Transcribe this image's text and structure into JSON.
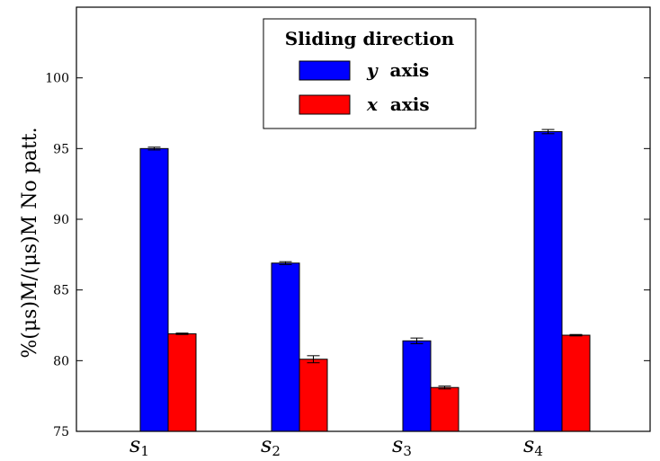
{
  "chart_data": {
    "type": "bar",
    "categories": [
      "s1",
      "s2",
      "s3",
      "s4"
    ],
    "category_labels": [
      {
        "main": "s",
        "sub": "1"
      },
      {
        "main": "s",
        "sub": "2"
      },
      {
        "main": "s",
        "sub": "3"
      },
      {
        "main": "s",
        "sub": "4"
      }
    ],
    "series": [
      {
        "name": "y axis",
        "symbol": "y",
        "word": "axis",
        "color": "#0000ff",
        "values": [
          95.0,
          86.9,
          81.4,
          96.2
        ],
        "errors": [
          0.1,
          0.1,
          0.2,
          0.15
        ]
      },
      {
        "name": "x axis",
        "symbol": "x",
        "word": "axis",
        "color": "#ff0000",
        "values": [
          81.9,
          80.1,
          78.1,
          81.8
        ],
        "errors": [
          0.05,
          0.25,
          0.1,
          0.05
        ]
      }
    ],
    "legend_title": "Sliding direction",
    "legend_position": "top-center",
    "ylabel": "%(μs)M/(μs)M No patt.",
    "ylim": [
      75,
      105
    ],
    "yticks": [
      75,
      80,
      85,
      90,
      95,
      100
    ],
    "grid": false
  }
}
